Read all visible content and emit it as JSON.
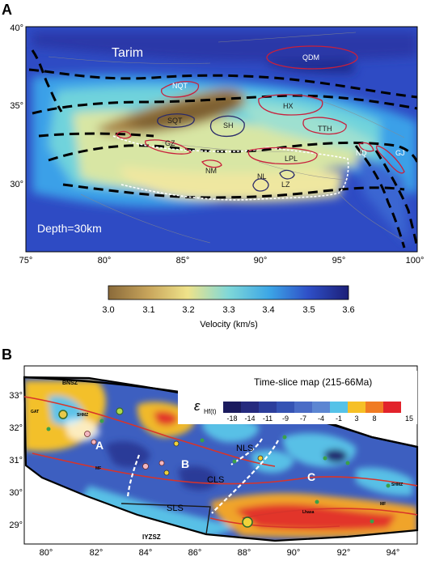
{
  "panel_a": {
    "letter": "A",
    "region_label": "Tarim",
    "depth_label": "Depth=30km",
    "lat_ticks": [
      "40°",
      "35°",
      "30°"
    ],
    "lon_ticks": [
      "75°",
      "80°",
      "85°",
      "90°",
      "95°",
      "100°"
    ],
    "regions": {
      "qdm": "QDM",
      "nqt": "NQT",
      "hx": "HX",
      "sqt": "SQT",
      "sh": "SH",
      "tth": "TTH",
      "gz": "GZ",
      "nq": "NQ",
      "gj": "GJ",
      "lpl": "LPL",
      "nm": "NM",
      "nl": "NL",
      "lz": "LZ"
    },
    "colorbar": {
      "ticks": [
        "3.0",
        "3.1",
        "3.2",
        "3.3",
        "3.4",
        "3.5",
        "3.6"
      ],
      "title": "Velocity (km/s)",
      "colors": [
        "#8a6a3a",
        "#c9a65c",
        "#efe38a",
        "#7fd8d8",
        "#3ca6e6",
        "#2f50c8",
        "#1c1f78"
      ]
    }
  },
  "panel_b": {
    "letter": "B",
    "title": "Time-slice map (215-66Ma)",
    "epsilon_symbol": "ε",
    "epsilon_sub": "Hf(t)",
    "legend_ticks": [
      "-18",
      "-14",
      "-11",
      "-9",
      "-7",
      "-4",
      "-1",
      "3",
      "8",
      "15"
    ],
    "legend_colors": [
      "#1b1b5e",
      "#252a7e",
      "#2c3e9c",
      "#3553b4",
      "#4a6cc6",
      "#5c86d2",
      "#55c2e8",
      "#f6c026",
      "#f07b23",
      "#e2232b"
    ],
    "lat_ticks": [
      "33°",
      "32°",
      "31°",
      "30°",
      "29°"
    ],
    "lon_ticks": [
      "80°",
      "82°",
      "84°",
      "86°",
      "88°",
      "90°",
      "92°",
      "94°"
    ],
    "labels": {
      "bnsz": "BNSZ",
      "iyzsz": "IYZSZ",
      "shmz_w": "SHMZ",
      "shmz_e": "SHMZ",
      "mf_w": "MF",
      "mf_e": "MF",
      "lhsa": "Lhasa",
      "gat": "GAT",
      "zone_a": "A",
      "zone_b": "B",
      "zone_c": "C",
      "nls": "NLS",
      "cls": "CLS",
      "sls": "SLS"
    }
  }
}
